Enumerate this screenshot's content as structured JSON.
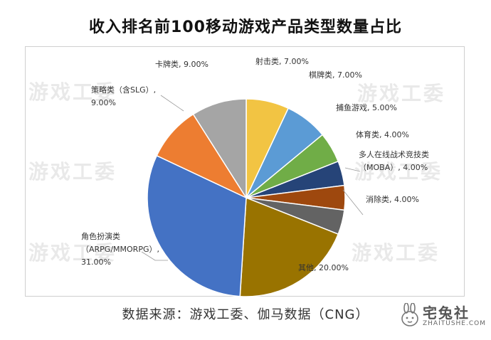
{
  "title": "收入排名前100移动游戏产品类型数量占比",
  "source": "数据来源：游戏工委、伽马数据（CNG）",
  "watermark": "游戏工委",
  "logo": {
    "name": "宅兔社",
    "url": "ZHAITUSHE.COM"
  },
  "chart_data": {
    "type": "pie",
    "categories": [
      "射击类",
      "棋牌类",
      "捕鱼游戏",
      "体育类",
      "多人在线战术竞技类（MOBA）",
      "消除类",
      "其他",
      "角色扮演类（ARPG/MMORPG）",
      "策略类（含SLG）",
      "卡牌类"
    ],
    "values": [
      7.0,
      7.0,
      5.0,
      4.0,
      4.0,
      4.0,
      20.0,
      31.0,
      9.0,
      9.0
    ],
    "labels": [
      [
        "射击类, 7.00%"
      ],
      [
        "棋牌类, 7.00%"
      ],
      [
        "捕鱼游戏, 5.00%"
      ],
      [
        "体育类, 4.00%"
      ],
      [
        "多人在线战术竞技类",
        "（MOBA）, 4.00%"
      ],
      [
        "消除类, 4.00%"
      ],
      [
        "其他, 20.00%"
      ],
      [
        "角色扮演类",
        "（ARPG/MMORPG）,",
        "31.00%"
      ],
      [
        "策略类（含SLG）,",
        "9.00%"
      ],
      [
        "卡牌类, 9.00%"
      ]
    ],
    "colors": [
      "#F2C443",
      "#5B9BD5",
      "#70AD47",
      "#264478",
      "#9E480E",
      "#636363",
      "#997300",
      "#4472C4",
      "#ED7D31",
      "#A5A5A5"
    ]
  }
}
